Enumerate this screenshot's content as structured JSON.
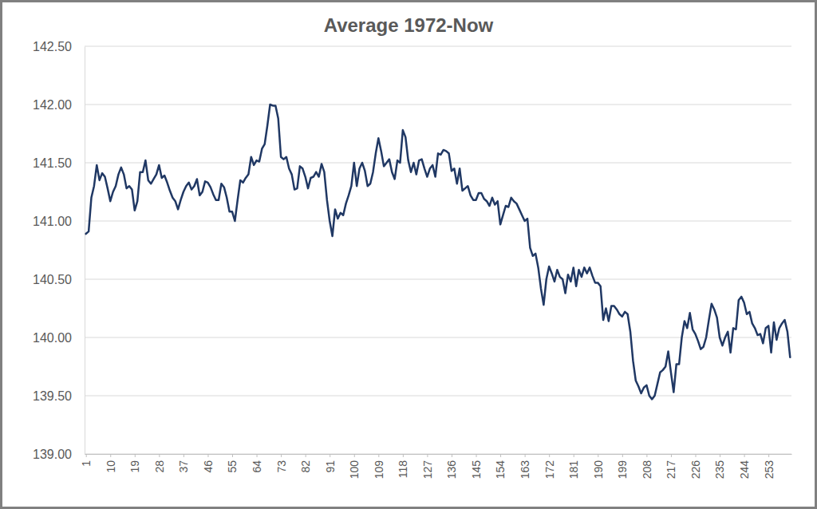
{
  "chart_data": {
    "type": "line",
    "title": "Average 1972-Now",
    "x": [
      1,
      2,
      3,
      4,
      5,
      6,
      7,
      8,
      9,
      10,
      11,
      12,
      13,
      14,
      15,
      16,
      17,
      18,
      19,
      20,
      21,
      22,
      23,
      24,
      25,
      26,
      27,
      28,
      29,
      30,
      31,
      32,
      33,
      34,
      35,
      36,
      37,
      38,
      39,
      40,
      41,
      42,
      43,
      44,
      45,
      46,
      47,
      48,
      49,
      50,
      51,
      52,
      53,
      54,
      55,
      56,
      57,
      58,
      59,
      60,
      61,
      62,
      63,
      64,
      65,
      66,
      67,
      68,
      69,
      70,
      71,
      72,
      73,
      74,
      75,
      76,
      77,
      78,
      79,
      80,
      81,
      82,
      83,
      84,
      85,
      86,
      87,
      88,
      89,
      90,
      91,
      92,
      93,
      94,
      95,
      96,
      97,
      98,
      99,
      100,
      101,
      102,
      103,
      104,
      105,
      106,
      107,
      108,
      109,
      110,
      111,
      112,
      113,
      114,
      115,
      116,
      117,
      118,
      119,
      120,
      121,
      122,
      123,
      124,
      125,
      126,
      127,
      128,
      129,
      130,
      131,
      132,
      133,
      134,
      135,
      136,
      137,
      138,
      139,
      140,
      141,
      142,
      143,
      144,
      145,
      146,
      147,
      148,
      149,
      150,
      151,
      152,
      153,
      154,
      155,
      156,
      157,
      158,
      159,
      160,
      161,
      162,
      163,
      164,
      165,
      166,
      167,
      168,
      169,
      170,
      171,
      172,
      173,
      174,
      175,
      176,
      177,
      178,
      179,
      180,
      181,
      182,
      183,
      184,
      185,
      186,
      187,
      188,
      189,
      190,
      191,
      192,
      193,
      194,
      195,
      196,
      197,
      198,
      199,
      200,
      201,
      202,
      203,
      204,
      205,
      206,
      207,
      208,
      209,
      210,
      211,
      212,
      213,
      214,
      215,
      216,
      217,
      218,
      219,
      220,
      221,
      222,
      223,
      224,
      225,
      226,
      227,
      228,
      229,
      230,
      231,
      232,
      233,
      234,
      235,
      236,
      237,
      238,
      239,
      240,
      241,
      242,
      243,
      244,
      245,
      246,
      247,
      248,
      249,
      250,
      251,
      252,
      253,
      254,
      255,
      256,
      257,
      258,
      259,
      260,
      261
    ],
    "values": [
      140.89,
      140.91,
      141.2,
      141.3,
      141.48,
      141.35,
      141.41,
      141.38,
      141.28,
      141.17,
      141.25,
      141.3,
      141.4,
      141.46,
      141.4,
      141.28,
      141.3,
      141.27,
      141.09,
      141.17,
      141.42,
      141.42,
      141.52,
      141.35,
      141.32,
      141.36,
      141.4,
      141.48,
      141.37,
      141.39,
      141.33,
      141.26,
      141.2,
      141.17,
      141.1,
      141.18,
      141.25,
      141.3,
      141.33,
      141.27,
      141.3,
      141.36,
      141.22,
      141.25,
      141.34,
      141.33,
      141.29,
      141.23,
      141.18,
      141.18,
      141.32,
      141.29,
      141.2,
      141.08,
      141.08,
      141.0,
      141.18,
      141.35,
      141.33,
      141.37,
      141.4,
      141.55,
      141.48,
      141.52,
      141.51,
      141.62,
      141.66,
      141.82,
      142.0,
      141.99,
      141.99,
      141.88,
      141.55,
      141.53,
      141.55,
      141.45,
      141.4,
      141.27,
      141.28,
      141.47,
      141.45,
      141.38,
      141.28,
      141.37,
      141.38,
      141.42,
      141.38,
      141.49,
      141.42,
      141.18,
      141.0,
      140.87,
      141.1,
      141.02,
      141.07,
      141.05,
      141.15,
      141.22,
      141.3,
      141.5,
      141.3,
      141.45,
      141.5,
      141.43,
      141.3,
      141.32,
      141.42,
      141.58,
      141.71,
      141.6,
      141.47,
      141.5,
      141.53,
      141.42,
      141.36,
      141.52,
      141.5,
      141.78,
      141.72,
      141.52,
      141.42,
      141.5,
      141.4,
      141.52,
      141.53,
      141.45,
      141.38,
      141.45,
      141.48,
      141.38,
      141.58,
      141.57,
      141.61,
      141.6,
      141.58,
      141.43,
      141.45,
      141.32,
      141.45,
      141.26,
      141.28,
      141.3,
      141.22,
      141.18,
      141.18,
      141.24,
      141.24,
      141.19,
      141.17,
      141.13,
      141.2,
      141.14,
      141.17,
      140.97,
      141.05,
      141.13,
      141.12,
      141.2,
      141.17,
      141.15,
      141.1,
      141.05,
      141.0,
      141.02,
      140.77,
      140.7,
      140.72,
      140.6,
      140.42,
      140.28,
      140.5,
      140.61,
      140.55,
      140.48,
      140.58,
      140.52,
      140.5,
      140.38,
      140.54,
      140.48,
      140.6,
      140.44,
      140.58,
      140.52,
      140.6,
      140.55,
      140.6,
      140.53,
      140.47,
      140.47,
      140.44,
      140.15,
      140.25,
      140.14,
      140.27,
      140.27,
      140.24,
      140.2,
      140.18,
      140.22,
      140.2,
      140.05,
      139.8,
      139.63,
      139.58,
      139.52,
      139.57,
      139.59,
      139.5,
      139.47,
      139.5,
      139.6,
      139.7,
      139.72,
      139.75,
      139.88,
      139.7,
      139.53,
      139.77,
      139.77,
      140.0,
      140.14,
      140.08,
      140.21,
      140.07,
      140.03,
      139.97,
      139.9,
      139.92,
      140.0,
      140.15,
      140.29,
      140.24,
      140.17,
      140.0,
      139.93,
      140.0,
      140.05,
      139.87,
      140.08,
      140.07,
      140.32,
      140.35,
      140.3,
      140.2,
      140.22,
      140.12,
      140.08,
      140.02,
      140.03,
      139.95,
      140.08,
      140.1,
      139.87,
      140.13,
      139.98,
      140.08,
      140.12,
      140.15,
      140.05,
      139.83
    ],
    "color": "#203864",
    "xlim": [
      0.5,
      261.5
    ],
    "xticks": [
      1,
      10,
      19,
      28,
      37,
      46,
      55,
      64,
      73,
      82,
      91,
      100,
      109,
      118,
      127,
      136,
      145,
      154,
      163,
      172,
      181,
      190,
      199,
      208,
      217,
      226,
      235,
      244,
      253
    ],
    "ylim": [
      139,
      142.5
    ],
    "yticks": [
      {
        "value": 139,
        "label": "139.00"
      },
      {
        "value": 139.5,
        "label": "139.50"
      },
      {
        "value": 140,
        "label": "140.00"
      },
      {
        "value": 140.5,
        "label": "140.50"
      },
      {
        "value": 141,
        "label": "141.00"
      },
      {
        "value": 141.5,
        "label": "141.50"
      },
      {
        "value": 142,
        "label": "142.00"
      },
      {
        "value": 142.5,
        "label": "142.50"
      }
    ],
    "grid": true
  }
}
